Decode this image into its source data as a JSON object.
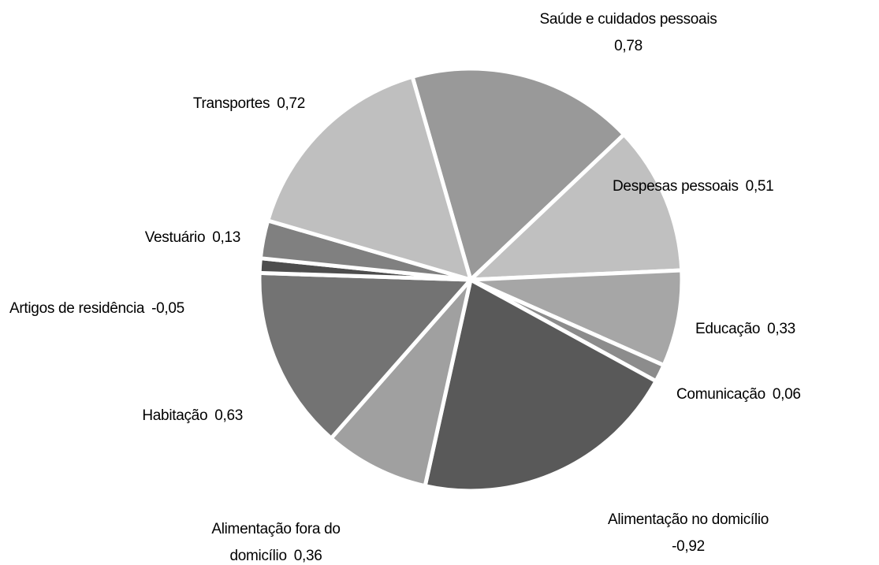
{
  "chart_data": {
    "type": "pie",
    "categories": [
      "Saúde e cuidados pessoais",
      "Despesas pessoais",
      "Educação",
      "Comunicação",
      "Alimentação no domicílio",
      "Alimentação fora do domicílio",
      "Habitação",
      "Artigos de residência",
      "Vestuário",
      "Transportes"
    ],
    "values": [
      0.78,
      0.51,
      0.33,
      0.06,
      -0.92,
      0.36,
      0.63,
      -0.05,
      0.13,
      0.72
    ],
    "value_labels": [
      "0,78",
      "0,51",
      "0,33",
      "0,06",
      "-0,92",
      "0,36",
      "0,63",
      "-0,05",
      "0,13",
      "0,72"
    ],
    "colors": [
      "#999999",
      "#c0c0c0",
      "#a6a6a6",
      "#8c8c8c",
      "#595959",
      "#a0a0a0",
      "#737373",
      "#4d4d4d",
      "#808080",
      "#bfbfbf"
    ]
  }
}
